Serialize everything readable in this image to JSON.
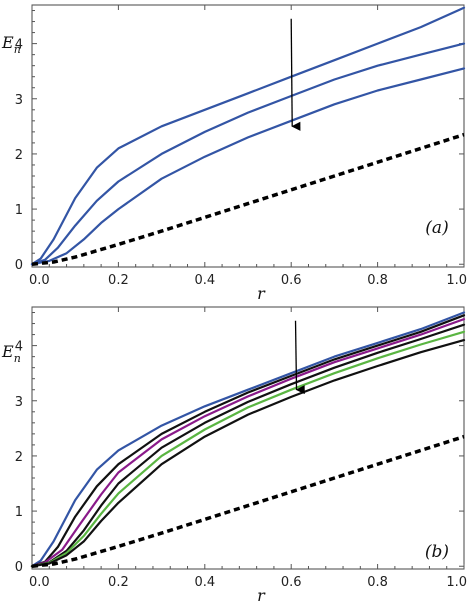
{
  "chart_data": [
    {
      "type": "line",
      "panel_label": "(a)",
      "xlabel": "r",
      "ylabel": "E",
      "ylabel_sub": "n",
      "xlim": [
        0,
        1
      ],
      "ylim": [
        -0.05,
        4.7
      ],
      "xticks": [
        "0.0",
        "0.2",
        "0.4",
        "0.6",
        "0.8",
        "1.0"
      ],
      "yticks": [
        "0",
        "1",
        "2",
        "3",
        "4"
      ],
      "arrow": {
        "x": 0.6,
        "y_from": 4.45,
        "y_to": 2.5
      },
      "series": [
        {
          "color": "#3355a5",
          "style": "solid",
          "x": [
            0,
            0.02,
            0.05,
            0.1,
            0.15,
            0.2,
            0.3,
            0.4,
            0.5,
            0.6,
            0.7,
            0.8,
            0.9,
            1.0
          ],
          "y": [
            0,
            0.1,
            0.45,
            1.2,
            1.75,
            2.1,
            2.5,
            2.8,
            3.1,
            3.4,
            3.7,
            4.0,
            4.3,
            4.65
          ]
        },
        {
          "color": "#3355a5",
          "style": "solid",
          "x": [
            0,
            0.03,
            0.06,
            0.1,
            0.15,
            0.2,
            0.3,
            0.4,
            0.5,
            0.6,
            0.7,
            0.8,
            0.9,
            1.0
          ],
          "y": [
            0,
            0.08,
            0.3,
            0.7,
            1.15,
            1.5,
            2.0,
            2.4,
            2.75,
            3.05,
            3.35,
            3.6,
            3.8,
            4.0
          ]
        },
        {
          "color": "#3355a5",
          "style": "solid",
          "x": [
            0,
            0.04,
            0.08,
            0.12,
            0.16,
            0.2,
            0.3,
            0.4,
            0.5,
            0.6,
            0.7,
            0.8,
            0.9,
            1.0
          ],
          "y": [
            0,
            0.06,
            0.2,
            0.45,
            0.75,
            1.0,
            1.55,
            1.95,
            2.3,
            2.6,
            2.9,
            3.15,
            3.35,
            3.55
          ]
        },
        {
          "color": "#000000",
          "style": "dashed",
          "x": [
            0,
            0.05,
            0.1,
            0.2,
            0.3,
            0.4,
            0.5,
            0.6,
            0.7,
            0.8,
            0.9,
            1.0
          ],
          "y": [
            0,
            0.04,
            0.13,
            0.36,
            0.6,
            0.85,
            1.1,
            1.35,
            1.6,
            1.85,
            2.1,
            2.35
          ]
        }
      ]
    },
    {
      "type": "line",
      "panel_label": "(b)",
      "xlabel": "r",
      "ylabel": "E",
      "ylabel_sub": "n",
      "xlim": [
        0,
        1
      ],
      "ylim": [
        -0.05,
        4.7
      ],
      "xticks": [
        "0.0",
        "0.2",
        "0.4",
        "0.6",
        "0.8",
        "1.0"
      ],
      "yticks": [
        "0",
        "1",
        "2",
        "3",
        "4"
      ],
      "arrow": {
        "x": 0.61,
        "y_from": 4.45,
        "y_to": 3.2
      },
      "series": [
        {
          "color": "#3355a5",
          "style": "solid",
          "x": [
            0,
            0.02,
            0.05,
            0.1,
            0.15,
            0.2,
            0.3,
            0.4,
            0.5,
            0.6,
            0.7,
            0.8,
            0.9,
            1.0
          ],
          "y": [
            0,
            0.1,
            0.45,
            1.2,
            1.75,
            2.1,
            2.55,
            2.9,
            3.2,
            3.5,
            3.8,
            4.05,
            4.3,
            4.6
          ]
        },
        {
          "color": "#111111",
          "style": "solid",
          "x": [
            0,
            0.03,
            0.06,
            0.1,
            0.15,
            0.2,
            0.3,
            0.4,
            0.5,
            0.6,
            0.7,
            0.8,
            0.9,
            1.0
          ],
          "y": [
            0,
            0.08,
            0.35,
            0.9,
            1.45,
            1.85,
            2.4,
            2.8,
            3.15,
            3.45,
            3.75,
            4.0,
            4.25,
            4.55
          ]
        },
        {
          "color": "#8a1a8a",
          "style": "solid",
          "x": [
            0,
            0.03,
            0.07,
            0.11,
            0.16,
            0.2,
            0.3,
            0.4,
            0.5,
            0.6,
            0.7,
            0.8,
            0.9,
            1.0
          ],
          "y": [
            0,
            0.07,
            0.3,
            0.75,
            1.3,
            1.7,
            2.3,
            2.72,
            3.08,
            3.4,
            3.7,
            3.95,
            4.2,
            4.48
          ]
        },
        {
          "color": "#111111",
          "style": "solid",
          "x": [
            0,
            0.04,
            0.08,
            0.12,
            0.16,
            0.2,
            0.3,
            0.4,
            0.5,
            0.6,
            0.7,
            0.8,
            0.9,
            1.0
          ],
          "y": [
            0,
            0.07,
            0.28,
            0.65,
            1.1,
            1.5,
            2.15,
            2.6,
            2.98,
            3.3,
            3.6,
            3.87,
            4.12,
            4.38
          ]
        },
        {
          "color": "#5ab542",
          "style": "solid",
          "x": [
            0,
            0.04,
            0.08,
            0.12,
            0.16,
            0.2,
            0.3,
            0.4,
            0.5,
            0.6,
            0.7,
            0.8,
            0.9,
            1.0
          ],
          "y": [
            0,
            0.06,
            0.24,
            0.55,
            0.95,
            1.32,
            2.0,
            2.48,
            2.88,
            3.2,
            3.5,
            3.77,
            4.02,
            4.25
          ]
        },
        {
          "color": "#111111",
          "style": "solid",
          "x": [
            0,
            0.04,
            0.08,
            0.12,
            0.16,
            0.2,
            0.3,
            0.4,
            0.5,
            0.6,
            0.7,
            0.8,
            0.9,
            1.0
          ],
          "y": [
            0,
            0.05,
            0.2,
            0.45,
            0.82,
            1.15,
            1.85,
            2.35,
            2.75,
            3.07,
            3.37,
            3.63,
            3.88,
            4.1
          ]
        },
        {
          "color": "#000000",
          "style": "dashed",
          "x": [
            0,
            0.05,
            0.1,
            0.2,
            0.3,
            0.4,
            0.5,
            0.6,
            0.7,
            0.8,
            0.9,
            1.0
          ],
          "y": [
            0,
            0.04,
            0.13,
            0.36,
            0.6,
            0.85,
            1.1,
            1.35,
            1.6,
            1.85,
            2.1,
            2.35
          ]
        }
      ]
    }
  ]
}
